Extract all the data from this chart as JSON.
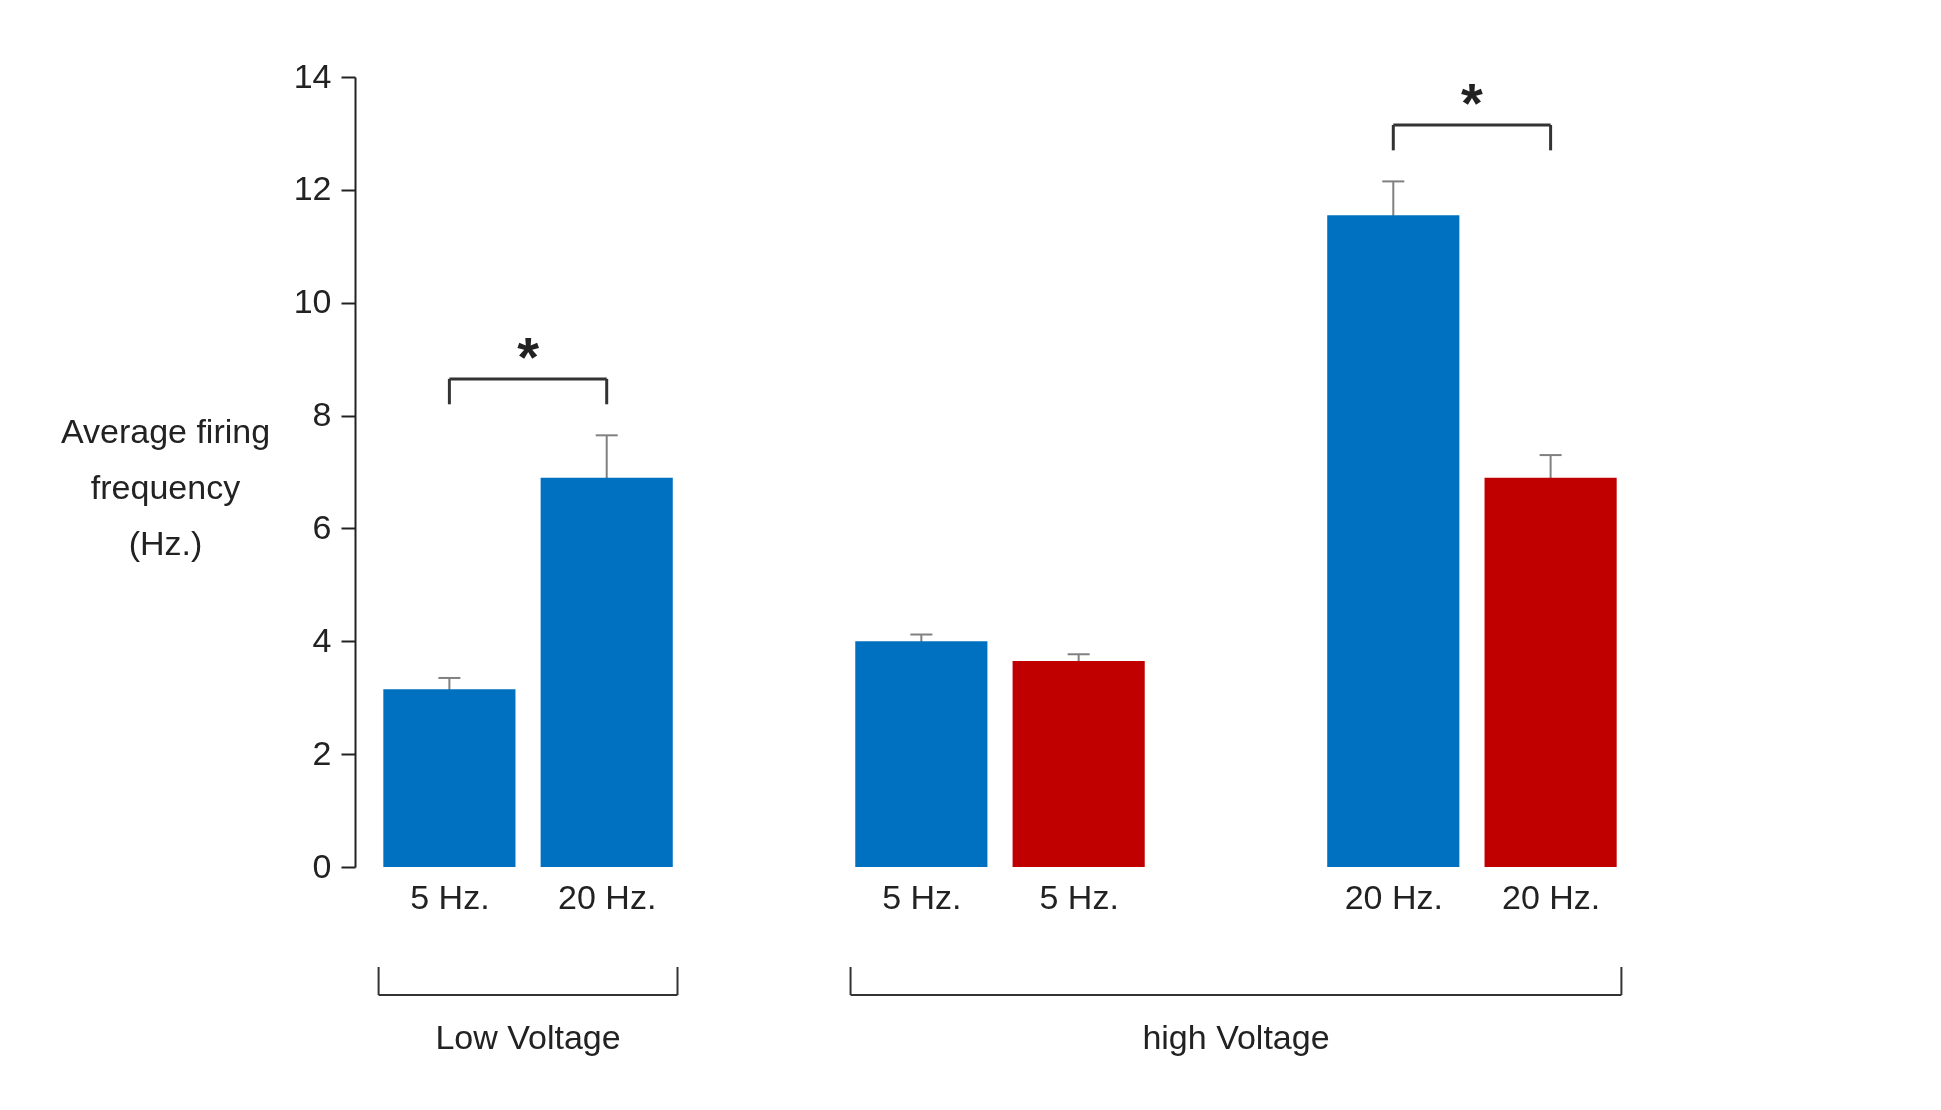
{
  "chart_data": {
    "type": "bar",
    "ylabel": "Average firing frequency (Hz.)",
    "categories": [
      "5 Hz.",
      "20 Hz.",
      null,
      "5 Hz.",
      "5 Hz.",
      null,
      "20 Hz.",
      "20 Hz."
    ],
    "values": [
      3.15,
      6.9,
      null,
      4.0,
      3.65,
      null,
      11.55,
      6.9
    ],
    "errors": [
      0.2,
      0.75,
      null,
      0.12,
      0.12,
      null,
      0.6,
      0.4
    ],
    "colors": [
      "#0070c0",
      "#0070c0",
      null,
      "#0070c0",
      "#c00000",
      null,
      "#0070c0",
      "#c00000"
    ],
    "ylim": [
      0,
      14
    ],
    "yticks": [
      0,
      2,
      4,
      6,
      8,
      10,
      12,
      14
    ],
    "grid": false,
    "legend": false,
    "annotations": [
      "*",
      "*",
      "Low Voltage",
      "high Voltage"
    ]
  }
}
